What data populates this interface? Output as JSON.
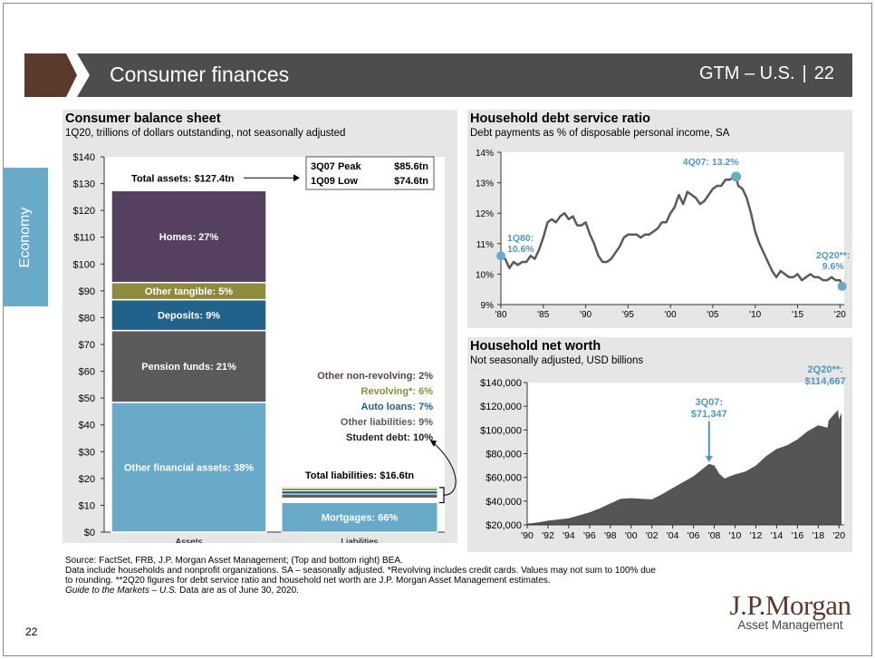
{
  "header": {
    "title": "Consumer finances",
    "section": "GTM – U.S.",
    "page": "22"
  },
  "side_tab": {
    "label": "Economy"
  },
  "balance_panel": {
    "title": "Consumer balance sheet",
    "subtitle": "1Q20, trillions of dollars outstanding, not seasonally adjusted"
  },
  "dsr_panel": {
    "title": "Household debt service ratio",
    "subtitle": "Debt payments as % of disposable personal income, SA"
  },
  "networth_panel": {
    "title": "Household net worth",
    "subtitle": "Not seasonally adjusted, USD billions"
  },
  "footer": {
    "lines": [
      "Source: FactSet, FRB, J.P. Morgan Asset Management; (Top and bottom right) BEA.",
      "Data include households and nonprofit organizations. SA – seasonally adjusted. *Revolving includes credit cards. Values may not sum to 100% due",
      "to rounding. **2Q20 figures for debt service ratio and household net worth are J.P. Morgan Asset Management estimates."
    ],
    "guide_italic": "Guide to the Markets – U.S.",
    "guide_rest": " Data are as of June 30, 2020."
  },
  "page_number": "22",
  "logo": {
    "main": "J.P.Morgan",
    "sub": "Asset Management"
  },
  "colors": {
    "header_dark": "#4d4d4d",
    "header_brown": "#5b3a2e",
    "tab_blue": "#6aaac9",
    "homes": "#55415f",
    "other_tangible": "#8e8b3c",
    "deposits": "#20628a",
    "pension": "#5b5b5b",
    "other_financial": "#6aaac9",
    "dsr_line": "#5a5a5a",
    "dsr_marker": "#6aaac9",
    "networth_fill": "#555555",
    "annotation_blue": "#4f97bf"
  },
  "chart_data": [
    {
      "type": "bar",
      "title": "Consumer balance sheet",
      "subtitle": "1Q20, trillions of dollars outstanding, not seasonally adjusted",
      "categories": [
        "Assets",
        "Liabilities"
      ],
      "ylim": [
        0,
        140
      ],
      "yticks": [
        "$0",
        "$10",
        "$20",
        "$30",
        "$40",
        "$50",
        "$60",
        "$70",
        "$80",
        "$90",
        "$100",
        "$110",
        "$120",
        "$130",
        "$140"
      ],
      "assets_total": 127.4,
      "assets_total_label": "Total assets: $127.4tn",
      "assets_segments": [
        {
          "label": "Other financial assets: 38%",
          "value": 48.4,
          "color": "#6aaac9"
        },
        {
          "label": "Pension funds: 21%",
          "value": 26.8,
          "color": "#5b5b5b"
        },
        {
          "label": "Deposits: 9%",
          "value": 11.5,
          "color": "#20628a"
        },
        {
          "label": "Other tangible: 5%",
          "value": 6.4,
          "color": "#8e8b3c"
        },
        {
          "label": "Homes: 27%",
          "value": 34.3,
          "color": "#55415f"
        }
      ],
      "liabilities_total": 16.6,
      "liabilities_total_label": "Total liabilities: $16.6tn",
      "liabilities_segments": [
        {
          "label": "Mortgages: 66%",
          "value": 11.0,
          "color": "#6aaac9"
        },
        {
          "label": "Student debt: 10%",
          "value": 1.7,
          "color": "#ffffff"
        },
        {
          "label": "Other liabilities: 9%",
          "value": 1.5,
          "color": "#5b5b5b"
        },
        {
          "label": "Auto loans: 7%",
          "value": 1.2,
          "color": "#20628a"
        },
        {
          "label": "Revolving*: 6%",
          "value": 1.0,
          "color": "#8e8b3c"
        },
        {
          "label": "Other non-revolving: 2%",
          "value": 0.4,
          "color": "#55415f"
        }
      ],
      "liability_legend": [
        {
          "label": "Other non-revolving: 2%",
          "color": "#55415f"
        },
        {
          "label": "Revolving*: 6%",
          "color": "#8e8b3c"
        },
        {
          "label": "Auto loans: 7%",
          "color": "#20628a"
        },
        {
          "label": "Other liabilities: 9%",
          "color": "#5b5b5b"
        },
        {
          "label": "Student debt: 10%",
          "color": "#222222"
        }
      ],
      "peak_table": [
        {
          "label": "3Q07 Peak",
          "value": "$85.6tn"
        },
        {
          "label": "1Q09 Low",
          "value": "$74.6tn"
        }
      ]
    },
    {
      "type": "line",
      "title": "Household debt service ratio",
      "subtitle": "Debt payments as % of disposable personal income, SA",
      "ylim": [
        9,
        14
      ],
      "yticks": [
        "9%",
        "10%",
        "11%",
        "12%",
        "13%",
        "14%"
      ],
      "xlim": [
        1980,
        2020.5
      ],
      "xticks": [
        "'80",
        "'85",
        "'90",
        "'95",
        "'00",
        "'05",
        "'10",
        "'15",
        "'20"
      ],
      "x": [
        1980.0,
        1980.5,
        1981.0,
        1981.5,
        1982.0,
        1982.5,
        1983.0,
        1983.5,
        1984.0,
        1984.5,
        1985.0,
        1985.5,
        1986.0,
        1986.5,
        1987.0,
        1987.5,
        1988.0,
        1988.5,
        1989.0,
        1989.5,
        1990.0,
        1990.5,
        1991.0,
        1991.5,
        1992.0,
        1992.5,
        1993.0,
        1993.5,
        1994.0,
        1994.5,
        1995.0,
        1995.5,
        1996.0,
        1996.5,
        1997.0,
        1997.5,
        1998.0,
        1998.5,
        1999.0,
        1999.5,
        2000.0,
        2000.5,
        2001.0,
        2001.5,
        2002.0,
        2002.5,
        2003.0,
        2003.5,
        2004.0,
        2004.5,
        2005.0,
        2005.5,
        2006.0,
        2006.5,
        2007.0,
        2007.5,
        2007.75,
        2008.0,
        2008.5,
        2009.0,
        2009.5,
        2010.0,
        2010.5,
        2011.0,
        2011.5,
        2012.0,
        2012.5,
        2013.0,
        2013.5,
        2014.0,
        2014.5,
        2015.0,
        2015.5,
        2016.0,
        2016.5,
        2017.0,
        2017.5,
        2018.0,
        2018.5,
        2019.0,
        2019.5,
        2020.0,
        2020.25
      ],
      "values": [
        10.6,
        10.5,
        10.2,
        10.4,
        10.3,
        10.4,
        10.4,
        10.6,
        10.5,
        10.8,
        11.2,
        11.7,
        11.8,
        11.7,
        11.9,
        12.0,
        11.8,
        11.9,
        11.6,
        11.6,
        11.7,
        11.3,
        11.0,
        10.6,
        10.4,
        10.4,
        10.5,
        10.7,
        10.9,
        11.2,
        11.3,
        11.3,
        11.3,
        11.2,
        11.3,
        11.3,
        11.4,
        11.5,
        11.7,
        11.7,
        12.0,
        12.2,
        12.6,
        12.3,
        12.7,
        12.6,
        12.5,
        12.3,
        12.4,
        12.6,
        12.8,
        12.9,
        12.9,
        13.1,
        13.1,
        13.2,
        13.2,
        12.9,
        12.8,
        12.5,
        12.0,
        11.4,
        11.0,
        10.7,
        10.4,
        10.1,
        9.9,
        10.1,
        10.0,
        9.9,
        9.9,
        10.0,
        9.8,
        9.9,
        10.0,
        9.9,
        9.9,
        9.8,
        9.8,
        9.9,
        9.8,
        9.8,
        9.6
      ],
      "annotations": [
        {
          "label": "1Q80:\n10.6%",
          "x": 1980.0,
          "y": 10.6
        },
        {
          "label": "4Q07: 13.2%",
          "x": 2007.75,
          "y": 13.2
        },
        {
          "label": "2Q20**:\n9.6%",
          "x": 2020.25,
          "y": 9.6
        }
      ]
    },
    {
      "type": "area",
      "title": "Household net worth",
      "subtitle": "Not seasonally adjusted, USD billions",
      "ylim": [
        20000,
        140000
      ],
      "yticks": [
        "$20,000",
        "$40,000",
        "$60,000",
        "$80,000",
        "$100,000",
        "$120,000",
        "$140,000"
      ],
      "xlim": [
        1990,
        2020.5
      ],
      "xticks": [
        "'90",
        "'92",
        "'94",
        "'96",
        "'98",
        "'00",
        "'02",
        "'04",
        "'06",
        "'08",
        "'10",
        "'12",
        "'14",
        "'16",
        "'18",
        "'20"
      ],
      "x": [
        1990,
        1991,
        1992,
        1993,
        1994,
        1995,
        1996,
        1997,
        1998,
        1999,
        2000,
        2001,
        2002,
        2003,
        2004,
        2005,
        2006,
        2007,
        2007.5,
        2008,
        2008.5,
        2009,
        2009.5,
        2010,
        2011,
        2012,
        2013,
        2014,
        2015,
        2016,
        2017,
        2018,
        2018.9,
        2019,
        2019.5,
        2019.9,
        2020,
        2020.25
      ],
      "values": [
        21000,
        22000,
        23500,
        24500,
        25500,
        28000,
        30500,
        34000,
        38000,
        42000,
        42500,
        42000,
        41500,
        46000,
        51000,
        56000,
        61000,
        68000,
        71347,
        70000,
        63000,
        59000,
        61000,
        62500,
        65000,
        70000,
        78000,
        84000,
        87000,
        92000,
        99000,
        104000,
        102000,
        108000,
        113000,
        117000,
        109000,
        114667
      ],
      "annotations": [
        {
          "label": "3Q07:\n$71,347",
          "x": 2007.5,
          "y": 71347
        },
        {
          "label": "2Q20**:\n$114,667",
          "x": 2020.25,
          "y": 114667
        }
      ]
    }
  ]
}
